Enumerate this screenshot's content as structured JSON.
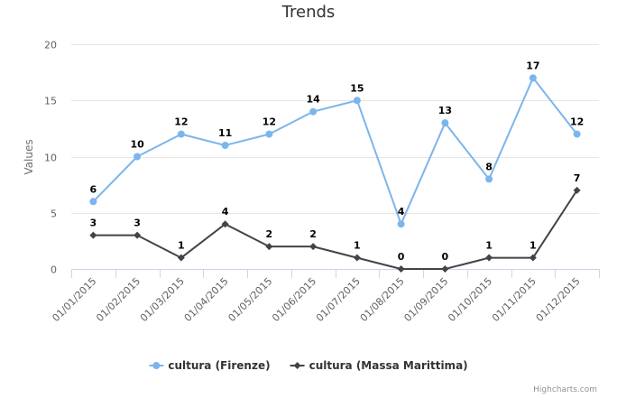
{
  "chart_data": {
    "type": "line",
    "title": "Trends",
    "ylabel": "Values",
    "ylim": [
      0,
      20
    ],
    "yticks": [
      0,
      5,
      10,
      15,
      20
    ],
    "grid": true,
    "legend_position": "bottom-center",
    "categories": [
      "01/01/2015",
      "01/02/2015",
      "01/03/2015",
      "01/04/2015",
      "01/05/2015",
      "01/06/2015",
      "01/07/2015",
      "01/08/2015",
      "01/09/2015",
      "01/10/2015",
      "01/11/2015",
      "01/12/2015"
    ],
    "series": [
      {
        "name": "cultura (Firenze)",
        "color": "#7cb5ec",
        "marker": "circle",
        "values": [
          6,
          10,
          12,
          11,
          12,
          14,
          15,
          4,
          13,
          8,
          17,
          12
        ]
      },
      {
        "name": "cultura (Massa Marittima)",
        "color": "#434348",
        "marker": "diamond",
        "values": [
          3,
          3,
          1,
          4,
          2,
          2,
          1,
          0,
          0,
          1,
          1,
          7
        ]
      }
    ],
    "credits": "Highcharts.com"
  }
}
